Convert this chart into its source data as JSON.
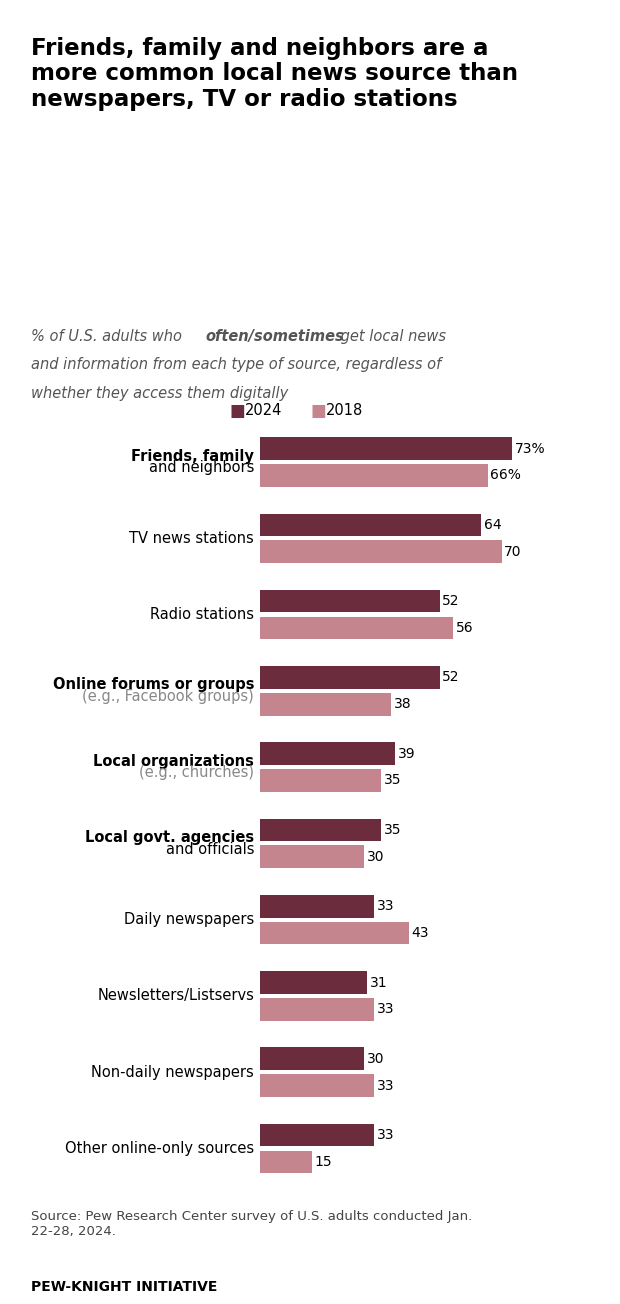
{
  "title": "Friends, family and neighbors are a\nmore common local news source than\nnewspapers, TV or radio stations",
  "categories": [
    [
      "Friends, family",
      "and neighbors"
    ],
    [
      "TV news stations"
    ],
    [
      "Radio stations"
    ],
    [
      "Online forums or groups",
      "(e.g., Facebook groups)"
    ],
    [
      "Local organizations",
      "(e.g., churches)"
    ],
    [
      "Local govt. agencies",
      "and officials"
    ],
    [
      "Daily newspapers"
    ],
    [
      "Newsletters/Listservs"
    ],
    [
      "Non-daily newspapers"
    ],
    [
      "Other online-only sources"
    ]
  ],
  "bold_first_line": [
    true,
    false,
    false,
    true,
    true,
    true,
    false,
    false,
    false,
    false
  ],
  "gray_second_line": [
    false,
    false,
    false,
    true,
    true,
    false,
    false,
    false,
    false,
    false
  ],
  "values_2024": [
    73,
    64,
    52,
    52,
    39,
    35,
    33,
    31,
    30,
    33
  ],
  "values_2018": [
    66,
    70,
    56,
    38,
    35,
    30,
    43,
    33,
    33,
    15
  ],
  "color_2024": "#6b2d3e",
  "color_2018": "#c4858f",
  "label_2024": "2024",
  "label_2018": "2018",
  "source_text": "Source: Pew Research Center survey of U.S. adults conducted Jan.\n22-28, 2024.",
  "footer_text": "PEW-KNIGHT INITIATIVE",
  "background_color": "#ffffff",
  "top_line_color": "#cc0000",
  "xlim": [
    0,
    90
  ]
}
